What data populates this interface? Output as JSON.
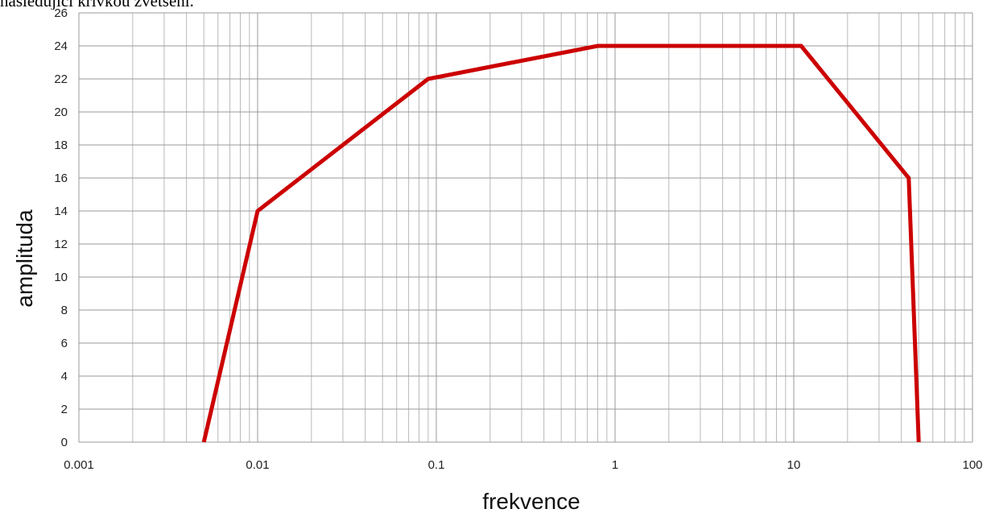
{
  "caption": "následující křivkou zvětšení.",
  "chart_data": {
    "type": "line",
    "title": "",
    "xlabel": "frekvence",
    "ylabel": "amplituda",
    "xscale": "log",
    "xlim": [
      0.001,
      100
    ],
    "ylim": [
      0,
      26
    ],
    "xticks": [
      "0.001",
      "0.01",
      "0.1",
      "1",
      "10",
      "100"
    ],
    "yticks": [
      "0",
      "2",
      "4",
      "6",
      "8",
      "10",
      "12",
      "14",
      "16",
      "18",
      "20",
      "22",
      "24",
      "26"
    ],
    "grid": true,
    "legend": "none",
    "series": [
      {
        "color": "#cc0000",
        "x": [
          0.005,
          0.01,
          0.09,
          0.8,
          11,
          44,
          50
        ],
        "y": [
          0,
          14,
          22,
          24,
          24,
          16,
          0
        ]
      }
    ]
  }
}
